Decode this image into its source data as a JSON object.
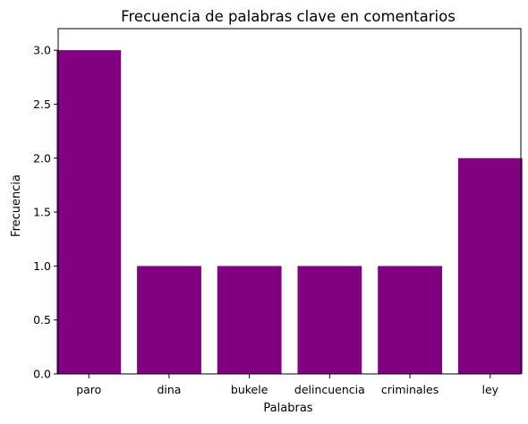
{
  "chart_data": {
    "type": "bar",
    "title": "Frecuencia de palabras clave en comentarios",
    "xlabel": "Palabras",
    "ylabel": "Frecuencia",
    "categories": [
      "paro",
      "dina",
      "bukele",
      "delincuencia",
      "criminales",
      "ley"
    ],
    "values": [
      3,
      1,
      1,
      1,
      1,
      2
    ],
    "ylim": [
      0,
      3.2
    ],
    "yticks": [
      0.0,
      0.5,
      1.0,
      1.5,
      2.0,
      2.5,
      3.0
    ],
    "ytick_labels": [
      "0.0",
      "0.5",
      "1.0",
      "1.5",
      "2.0",
      "2.5",
      "3.0"
    ],
    "bar_color": "#800080",
    "grid": false,
    "legend": "none"
  }
}
